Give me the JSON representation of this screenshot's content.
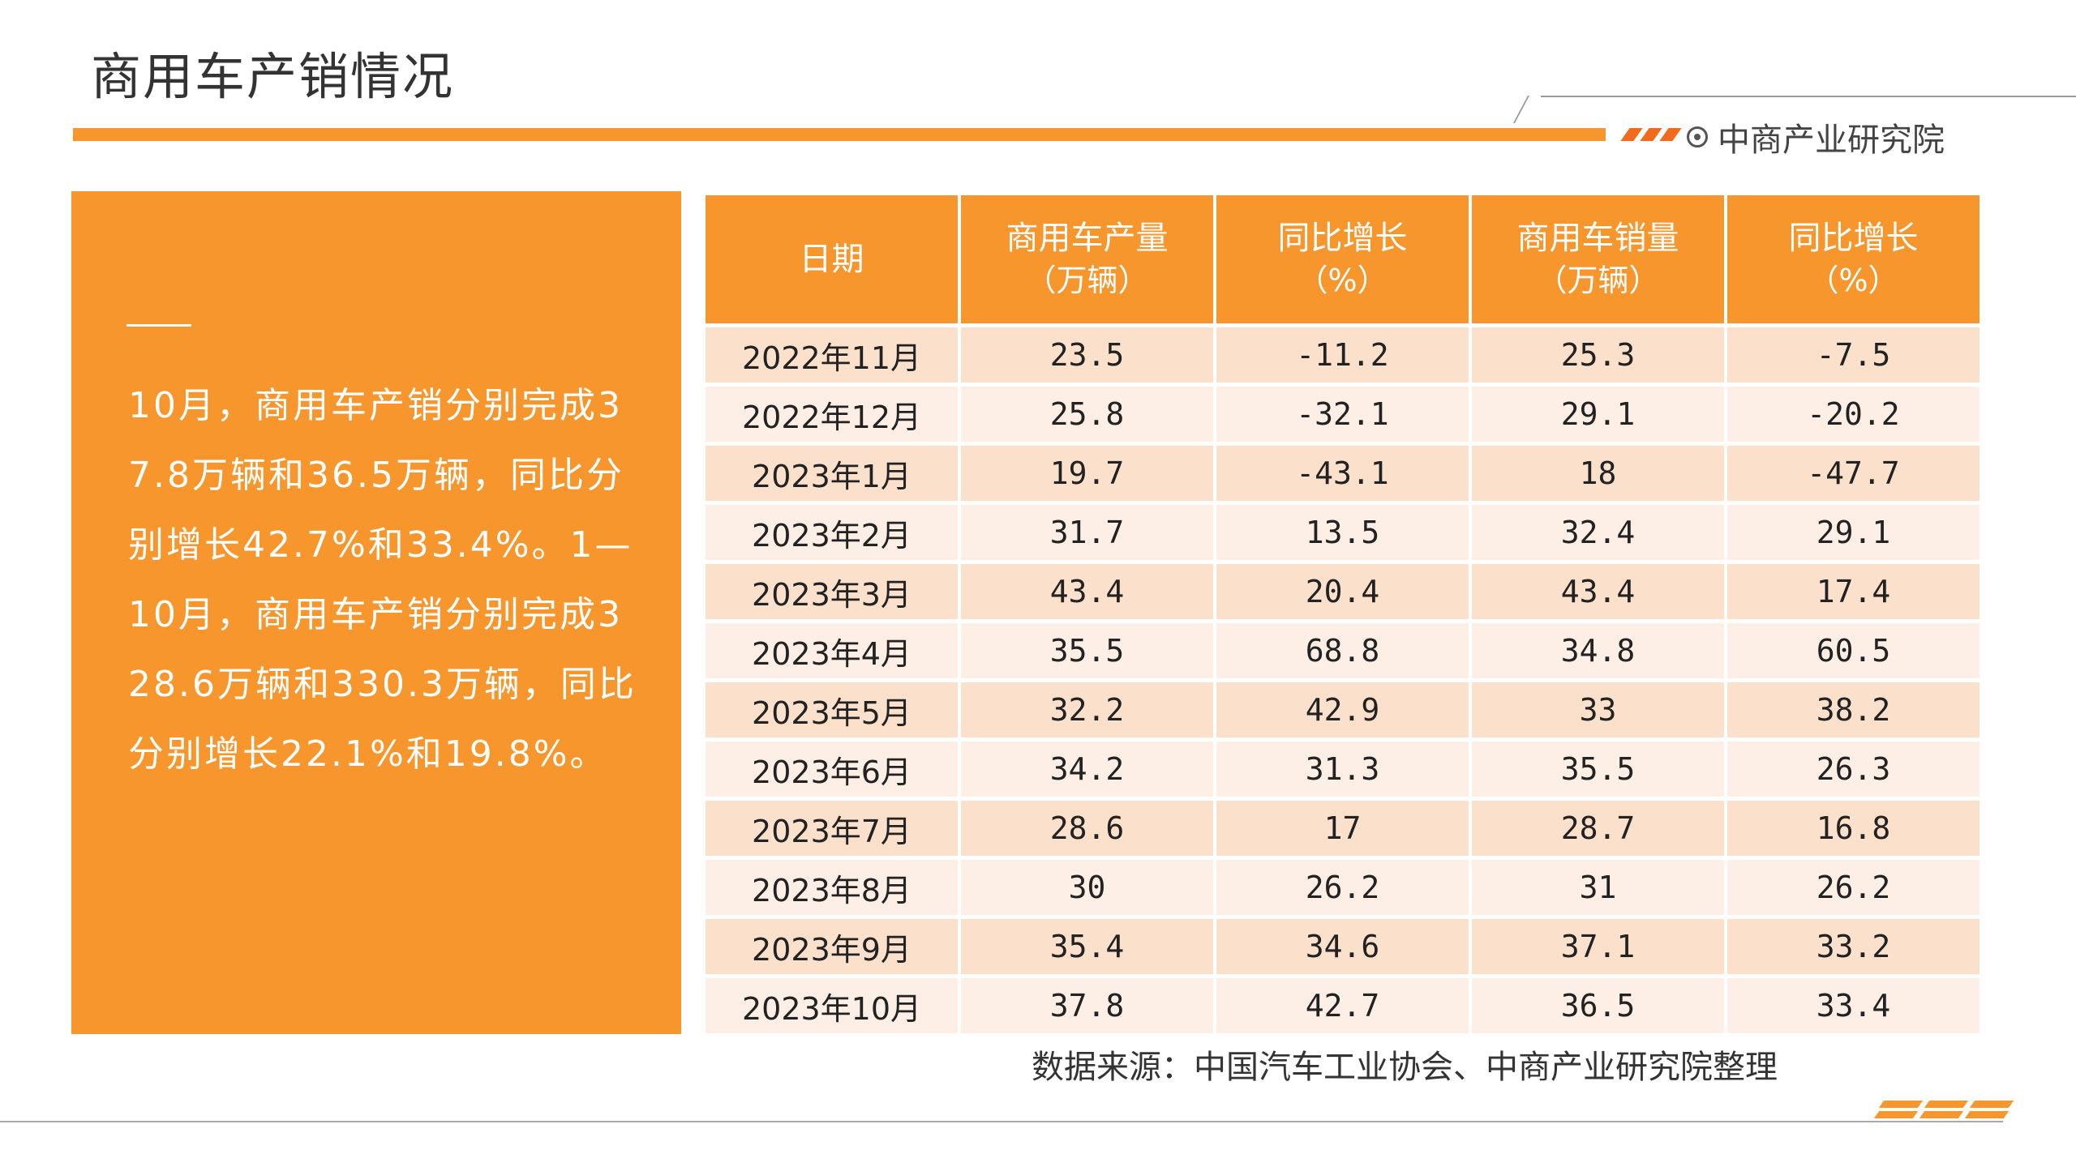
{
  "page": {
    "title": "商用车产销情况",
    "brand": "中商产业研究院"
  },
  "summary": {
    "text": "10月，商用车产销分别完成37.8万辆和36.5万辆，同比分别增长42.7%和33.4%。1—10月，商用车产销分别完成328.6万辆和330.3万辆，同比分别增长22.1%和19.8%。"
  },
  "table": {
    "headers": [
      {
        "main": "日期",
        "sub": ""
      },
      {
        "main": "商用车产量",
        "sub": "（万辆）"
      },
      {
        "main": "同比增长",
        "sub": "（%）"
      },
      {
        "main": "商用车销量",
        "sub": "（万辆）"
      },
      {
        "main": "同比增长",
        "sub": "（%）"
      }
    ],
    "rows": [
      [
        "2022年11月",
        "23.5",
        "-11.2",
        "25.3",
        "-7.5"
      ],
      [
        "2022年12月",
        "25.8",
        "-32.1",
        "29.1",
        "-20.2"
      ],
      [
        "2023年1月",
        "19.7",
        "-43.1",
        "18",
        "-47.7"
      ],
      [
        "2023年2月",
        "31.7",
        "13.5",
        "32.4",
        "29.1"
      ],
      [
        "2023年3月",
        "43.4",
        "20.4",
        "43.4",
        "17.4"
      ],
      [
        "2023年4月",
        "35.5",
        "68.8",
        "34.8",
        "60.5"
      ],
      [
        "2023年5月",
        "32.2",
        "42.9",
        "33",
        "38.2"
      ],
      [
        "2023年6月",
        "34.2",
        "31.3",
        "35.5",
        "26.3"
      ],
      [
        "2023年7月",
        "28.6",
        "17",
        "28.7",
        "16.8"
      ],
      [
        "2023年8月",
        "30",
        "26.2",
        "31",
        "26.2"
      ],
      [
        "2023年9月",
        "35.4",
        "34.6",
        "37.1",
        "33.2"
      ],
      [
        "2023年10月",
        "37.8",
        "42.7",
        "36.5",
        "33.4"
      ]
    ]
  },
  "source": "数据来源：中国汽车工业协会、中商产业研究院整理",
  "colors": {
    "accent": "#f7962c",
    "row_dark": "#fbe0cc",
    "row_light": "#fdefe5"
  }
}
